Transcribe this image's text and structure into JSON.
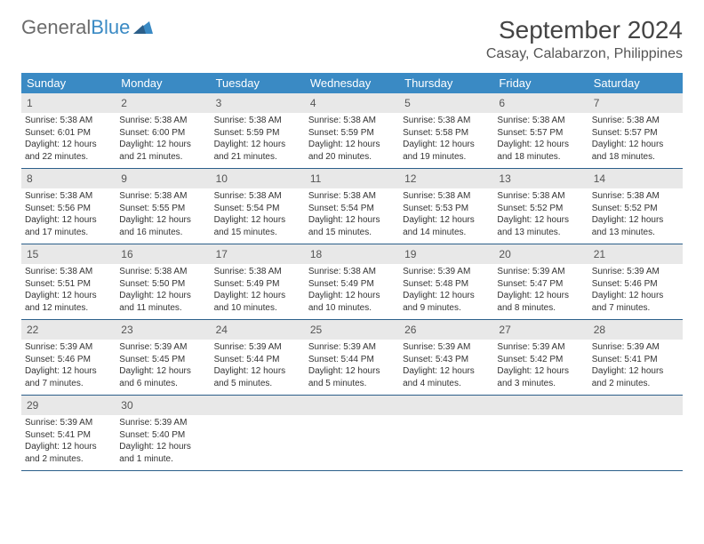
{
  "logo": {
    "text1": "General",
    "text2": "Blue"
  },
  "title": "September 2024",
  "location": "Casay, Calabarzon, Philippines",
  "colors": {
    "header_bg": "#3a8ac4",
    "header_text": "#ffffff",
    "daynum_bg": "#e8e8e8",
    "week_border": "#2c5f8a",
    "logo_gray": "#6b6b6b",
    "logo_blue": "#3a8ac4",
    "body_text": "#333333"
  },
  "weekdays": [
    "Sunday",
    "Monday",
    "Tuesday",
    "Wednesday",
    "Thursday",
    "Friday",
    "Saturday"
  ],
  "days": [
    {
      "n": "1",
      "sunrise": "Sunrise: 5:38 AM",
      "sunset": "Sunset: 6:01 PM",
      "dl1": "Daylight: 12 hours",
      "dl2": "and 22 minutes."
    },
    {
      "n": "2",
      "sunrise": "Sunrise: 5:38 AM",
      "sunset": "Sunset: 6:00 PM",
      "dl1": "Daylight: 12 hours",
      "dl2": "and 21 minutes."
    },
    {
      "n": "3",
      "sunrise": "Sunrise: 5:38 AM",
      "sunset": "Sunset: 5:59 PM",
      "dl1": "Daylight: 12 hours",
      "dl2": "and 21 minutes."
    },
    {
      "n": "4",
      "sunrise": "Sunrise: 5:38 AM",
      "sunset": "Sunset: 5:59 PM",
      "dl1": "Daylight: 12 hours",
      "dl2": "and 20 minutes."
    },
    {
      "n": "5",
      "sunrise": "Sunrise: 5:38 AM",
      "sunset": "Sunset: 5:58 PM",
      "dl1": "Daylight: 12 hours",
      "dl2": "and 19 minutes."
    },
    {
      "n": "6",
      "sunrise": "Sunrise: 5:38 AM",
      "sunset": "Sunset: 5:57 PM",
      "dl1": "Daylight: 12 hours",
      "dl2": "and 18 minutes."
    },
    {
      "n": "7",
      "sunrise": "Sunrise: 5:38 AM",
      "sunset": "Sunset: 5:57 PM",
      "dl1": "Daylight: 12 hours",
      "dl2": "and 18 minutes."
    },
    {
      "n": "8",
      "sunrise": "Sunrise: 5:38 AM",
      "sunset": "Sunset: 5:56 PM",
      "dl1": "Daylight: 12 hours",
      "dl2": "and 17 minutes."
    },
    {
      "n": "9",
      "sunrise": "Sunrise: 5:38 AM",
      "sunset": "Sunset: 5:55 PM",
      "dl1": "Daylight: 12 hours",
      "dl2": "and 16 minutes."
    },
    {
      "n": "10",
      "sunrise": "Sunrise: 5:38 AM",
      "sunset": "Sunset: 5:54 PM",
      "dl1": "Daylight: 12 hours",
      "dl2": "and 15 minutes."
    },
    {
      "n": "11",
      "sunrise": "Sunrise: 5:38 AM",
      "sunset": "Sunset: 5:54 PM",
      "dl1": "Daylight: 12 hours",
      "dl2": "and 15 minutes."
    },
    {
      "n": "12",
      "sunrise": "Sunrise: 5:38 AM",
      "sunset": "Sunset: 5:53 PM",
      "dl1": "Daylight: 12 hours",
      "dl2": "and 14 minutes."
    },
    {
      "n": "13",
      "sunrise": "Sunrise: 5:38 AM",
      "sunset": "Sunset: 5:52 PM",
      "dl1": "Daylight: 12 hours",
      "dl2": "and 13 minutes."
    },
    {
      "n": "14",
      "sunrise": "Sunrise: 5:38 AM",
      "sunset": "Sunset: 5:52 PM",
      "dl1": "Daylight: 12 hours",
      "dl2": "and 13 minutes."
    },
    {
      "n": "15",
      "sunrise": "Sunrise: 5:38 AM",
      "sunset": "Sunset: 5:51 PM",
      "dl1": "Daylight: 12 hours",
      "dl2": "and 12 minutes."
    },
    {
      "n": "16",
      "sunrise": "Sunrise: 5:38 AM",
      "sunset": "Sunset: 5:50 PM",
      "dl1": "Daylight: 12 hours",
      "dl2": "and 11 minutes."
    },
    {
      "n": "17",
      "sunrise": "Sunrise: 5:38 AM",
      "sunset": "Sunset: 5:49 PM",
      "dl1": "Daylight: 12 hours",
      "dl2": "and 10 minutes."
    },
    {
      "n": "18",
      "sunrise": "Sunrise: 5:38 AM",
      "sunset": "Sunset: 5:49 PM",
      "dl1": "Daylight: 12 hours",
      "dl2": "and 10 minutes."
    },
    {
      "n": "19",
      "sunrise": "Sunrise: 5:39 AM",
      "sunset": "Sunset: 5:48 PM",
      "dl1": "Daylight: 12 hours",
      "dl2": "and 9 minutes."
    },
    {
      "n": "20",
      "sunrise": "Sunrise: 5:39 AM",
      "sunset": "Sunset: 5:47 PM",
      "dl1": "Daylight: 12 hours",
      "dl2": "and 8 minutes."
    },
    {
      "n": "21",
      "sunrise": "Sunrise: 5:39 AM",
      "sunset": "Sunset: 5:46 PM",
      "dl1": "Daylight: 12 hours",
      "dl2": "and 7 minutes."
    },
    {
      "n": "22",
      "sunrise": "Sunrise: 5:39 AM",
      "sunset": "Sunset: 5:46 PM",
      "dl1": "Daylight: 12 hours",
      "dl2": "and 7 minutes."
    },
    {
      "n": "23",
      "sunrise": "Sunrise: 5:39 AM",
      "sunset": "Sunset: 5:45 PM",
      "dl1": "Daylight: 12 hours",
      "dl2": "and 6 minutes."
    },
    {
      "n": "24",
      "sunrise": "Sunrise: 5:39 AM",
      "sunset": "Sunset: 5:44 PM",
      "dl1": "Daylight: 12 hours",
      "dl2": "and 5 minutes."
    },
    {
      "n": "25",
      "sunrise": "Sunrise: 5:39 AM",
      "sunset": "Sunset: 5:44 PM",
      "dl1": "Daylight: 12 hours",
      "dl2": "and 5 minutes."
    },
    {
      "n": "26",
      "sunrise": "Sunrise: 5:39 AM",
      "sunset": "Sunset: 5:43 PM",
      "dl1": "Daylight: 12 hours",
      "dl2": "and 4 minutes."
    },
    {
      "n": "27",
      "sunrise": "Sunrise: 5:39 AM",
      "sunset": "Sunset: 5:42 PM",
      "dl1": "Daylight: 12 hours",
      "dl2": "and 3 minutes."
    },
    {
      "n": "28",
      "sunrise": "Sunrise: 5:39 AM",
      "sunset": "Sunset: 5:41 PM",
      "dl1": "Daylight: 12 hours",
      "dl2": "and 2 minutes."
    },
    {
      "n": "29",
      "sunrise": "Sunrise: 5:39 AM",
      "sunset": "Sunset: 5:41 PM",
      "dl1": "Daylight: 12 hours",
      "dl2": "and 2 minutes."
    },
    {
      "n": "30",
      "sunrise": "Sunrise: 5:39 AM",
      "sunset": "Sunset: 5:40 PM",
      "dl1": "Daylight: 12 hours",
      "dl2": "and 1 minute."
    }
  ]
}
